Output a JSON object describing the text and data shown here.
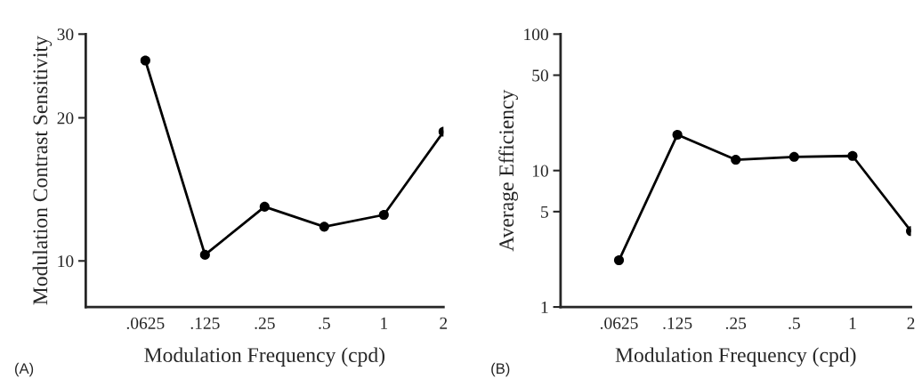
{
  "chart_data": [
    {
      "type": "line",
      "xlabel": "Modulation Frequency (cpd)",
      "ylabel": "Modulation Contrast Sensitivity",
      "categories": [
        ".0625",
        ".125",
        ".25",
        ".5",
        "1",
        "2"
      ],
      "series": [
        {
          "color": "#000000",
          "values": [
            26.4,
            10.3,
            13.0,
            11.8,
            12.5,
            18.7
          ]
        }
      ],
      "log": "y",
      "ylim": [
        8,
        30
      ],
      "yticks": [
        10,
        20,
        30
      ],
      "marker": "circle",
      "line_style": "solid",
      "grid": false,
      "annotations": [
        "(A)"
      ]
    },
    {
      "type": "line",
      "xlabel": "Modulation Frequency (cpd)",
      "ylabel": "Average Efficiency",
      "categories": [
        ".0625",
        ".125",
        ".25",
        ".5",
        "1",
        "2"
      ],
      "series": [
        {
          "color": "#000000",
          "values": [
            2.2,
            18.3,
            12.0,
            12.6,
            12.8,
            3.6
          ]
        }
      ],
      "log": "y",
      "ylim": [
        1,
        100
      ],
      "yticks": [
        1,
        5,
        10,
        50,
        100
      ],
      "marker": "circle",
      "line_style": "solid",
      "grid": false,
      "annotations": [
        "(B)"
      ]
    }
  ]
}
